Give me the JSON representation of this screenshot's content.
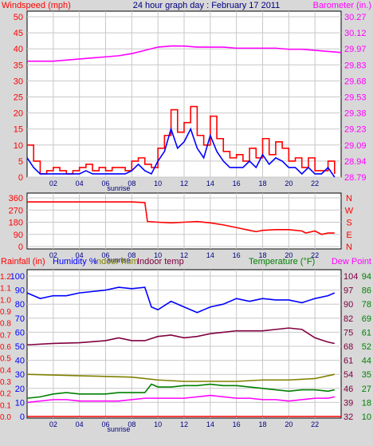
{
  "chart_data": [
    {
      "type": "line",
      "title": "24 hour graph day : February 17 2011",
      "ylabel_left": "Windspeed (mph)",
      "ylabel_right": "Barometer (in.)",
      "sunrise_label": "sunrise",
      "x_ticks": [
        "02",
        "04",
        "06",
        "08",
        "10",
        "12",
        "14",
        "16",
        "18",
        "20",
        "22"
      ],
      "ylim": [
        0,
        50
      ],
      "y_ticks": [
        "0",
        "5",
        "10",
        "15",
        "20",
        "25",
        "30",
        "35",
        "40",
        "45",
        "50"
      ],
      "y2lim": [
        28.79,
        30.27
      ],
      "y2_ticks": [
        "28.79",
        "28.94",
        "29.09",
        "29.23",
        "29.38",
        "29.53",
        "29.68",
        "29.83",
        "29.97",
        "30.12",
        "30.27"
      ],
      "series": [
        {
          "name": "Windspeed",
          "axis": "left",
          "color": "#ff0000",
          "step": true,
          "x": [
            0,
            0.5,
            1,
            1.5,
            2,
            2.5,
            3,
            3.5,
            4,
            4.5,
            5,
            5.5,
            6,
            6.5,
            7,
            7.5,
            8,
            8.5,
            9,
            9.5,
            10,
            10.5,
            11,
            11.5,
            12,
            12.5,
            13,
            13.5,
            14,
            14.5,
            15,
            15.5,
            16,
            16.5,
            17,
            17.5,
            18,
            18.5,
            19,
            19.5,
            20,
            20.5,
            21,
            21.5,
            22,
            22.5,
            23,
            23.5
          ],
          "y": [
            10,
            5,
            1,
            2,
            3,
            2,
            1,
            2,
            3,
            4,
            2,
            3,
            2,
            3,
            3,
            2,
            5,
            6,
            4,
            3,
            9,
            13,
            21,
            14,
            17,
            22,
            13,
            10,
            19,
            12,
            8,
            6,
            7,
            5,
            9,
            6,
            12,
            7,
            11,
            9,
            5,
            6,
            3,
            6,
            2,
            2,
            5,
            1
          ]
        },
        {
          "name": "Gust",
          "axis": "left",
          "color": "#0000ff",
          "x": [
            0,
            0.5,
            1,
            1.5,
            2,
            2.5,
            3,
            3.5,
            4,
            4.5,
            5,
            5.5,
            6,
            6.5,
            7,
            7.5,
            8,
            8.5,
            9,
            9.5,
            10,
            10.5,
            11,
            11.5,
            12,
            12.5,
            13,
            13.5,
            14,
            14.5,
            15,
            15.5,
            16,
            16.5,
            17,
            17.5,
            18,
            18.5,
            19,
            19.5,
            20,
            20.5,
            21,
            21.5,
            22,
            22.5,
            23,
            23.5
          ],
          "y": [
            6,
            3,
            1,
            1,
            1,
            1,
            1,
            1,
            1,
            2,
            1,
            1,
            1,
            1,
            1,
            1,
            2,
            4,
            2,
            1,
            5,
            8,
            15,
            9,
            11,
            15,
            9,
            6,
            13,
            8,
            5,
            3,
            3,
            3,
            5,
            3,
            7,
            4,
            6,
            5,
            3,
            3,
            1,
            3,
            1,
            1,
            3,
            0
          ]
        },
        {
          "name": "Barometer",
          "axis": "right",
          "color": "#ff00ff",
          "x": [
            0,
            1,
            2,
            3,
            4,
            5,
            6,
            7,
            8,
            9,
            10,
            11,
            12,
            13,
            14,
            15,
            16,
            17,
            18,
            19,
            20,
            21,
            22,
            23,
            24
          ],
          "y": [
            29.86,
            29.86,
            29.86,
            29.87,
            29.88,
            29.89,
            29.9,
            29.91,
            29.93,
            29.96,
            29.99,
            30.0,
            30.0,
            29.99,
            29.99,
            29.99,
            29.98,
            29.98,
            29.98,
            29.98,
            29.97,
            29.97,
            29.96,
            29.95,
            29.94
          ]
        }
      ]
    },
    {
      "type": "line",
      "x_ticks": [
        "02",
        "04",
        "06",
        "08",
        "10",
        "12",
        "14",
        "16",
        "18",
        "20",
        "22"
      ],
      "sunrise_label": "sunrise",
      "ylim": [
        0,
        360
      ],
      "y_ticks": [
        "0",
        "90",
        "180",
        "270",
        "360"
      ],
      "y2_ticks": [
        "N",
        "W",
        "S",
        "E",
        "N"
      ],
      "series": [
        {
          "name": "Wind direction",
          "color": "#ff0000",
          "x": [
            0,
            1,
            2,
            3,
            4,
            5,
            6,
            7,
            8,
            9,
            9.2,
            10,
            11,
            12,
            13,
            14,
            15,
            16,
            17,
            17.5,
            18,
            19,
            20,
            21,
            21.3,
            22,
            22.5,
            23,
            23.5
          ],
          "y": [
            330,
            330,
            330,
            330,
            330,
            330,
            330,
            330,
            330,
            325,
            185,
            180,
            175,
            180,
            185,
            175,
            160,
            140,
            120,
            110,
            120,
            125,
            125,
            115,
            100,
            115,
            90,
            100,
            100
          ]
        }
      ]
    },
    {
      "type": "line",
      "legend": [
        "Rainfall (in)",
        "Humidity %",
        "Indoor hum",
        "Indoor temp",
        "Temperature (°F)",
        "Dew Point"
      ],
      "x_ticks": [
        "02",
        "04",
        "06",
        "08",
        "10",
        "12",
        "14",
        "16",
        "18",
        "20",
        "22"
      ],
      "sunrise_label": "sunrise",
      "y_ticks_outer": [
        "0.0",
        "0.1",
        "0.2",
        "0.3",
        "0.4",
        "0.5",
        "0.6",
        "0.7",
        "0.8",
        "0.9",
        "1.0",
        "1.1",
        "1.2"
      ],
      "y_ticks_inner": [
        "0",
        "10",
        "20",
        "30",
        "40",
        "50",
        "60",
        "70",
        "80",
        "90",
        "100"
      ],
      "y_ticks_right_inner": [
        "32",
        "39",
        "46",
        "54",
        "61",
        "68",
        "75",
        "82",
        "90",
        "97",
        "104"
      ],
      "y_ticks_right_outer": [
        "10",
        "18",
        "27",
        "35",
        "44",
        "52",
        "61",
        "69",
        "78",
        "86",
        "94"
      ],
      "ylim": [
        0,
        100
      ],
      "series": [
        {
          "name": "Humidity",
          "color": "#0000ff",
          "x": [
            0,
            1,
            2,
            3,
            4,
            5,
            6,
            7,
            8,
            9,
            9.5,
            10,
            11,
            12,
            13,
            14,
            15,
            16,
            17,
            18,
            19,
            20,
            21,
            22,
            23,
            23.5
          ],
          "y": [
            88,
            84,
            86,
            86,
            88,
            89,
            90,
            92,
            91,
            92,
            78,
            76,
            82,
            78,
            74,
            78,
            80,
            84,
            82,
            84,
            83,
            83,
            81,
            84,
            86,
            88
          ]
        },
        {
          "name": "Indoor hum",
          "color": "#808000",
          "x": [
            0,
            2,
            4,
            6,
            8,
            9,
            10,
            12,
            14,
            16,
            18,
            20,
            22,
            23,
            23.5
          ],
          "y": [
            30,
            29.5,
            29,
            28.5,
            28,
            27,
            26,
            25,
            25,
            25,
            26,
            26,
            27,
            29,
            30
          ]
        },
        {
          "name": "Indoor temp",
          "color": "#800040",
          "x": [
            0,
            2,
            4,
            6,
            7,
            8,
            9,
            10,
            11,
            12,
            13,
            14,
            15,
            16,
            17,
            18,
            19,
            20,
            21,
            22,
            23,
            23.5
          ],
          "y": [
            51,
            52,
            52.5,
            54,
            56,
            54,
            54,
            57,
            58,
            56,
            57,
            59,
            60,
            61,
            61,
            61,
            62,
            63,
            62,
            56,
            53,
            52
          ]
        },
        {
          "name": "Temperature",
          "color": "#008000",
          "x": [
            0,
            1,
            2,
            3,
            4,
            5,
            6,
            7,
            8,
            9,
            9.5,
            10,
            11,
            12,
            13,
            14,
            15,
            16,
            17,
            18,
            19,
            20,
            21,
            22,
            23,
            23.5
          ],
          "y": [
            13,
            14,
            16,
            17,
            16,
            16,
            16,
            17,
            17,
            17,
            23,
            21,
            21,
            22,
            22,
            23,
            22,
            22,
            21,
            20,
            19,
            18,
            19,
            19,
            18,
            19
          ]
        },
        {
          "name": "Dew Point",
          "color": "#ff00ff",
          "x": [
            0,
            1,
            2,
            3,
            4,
            5,
            6,
            7,
            8,
            9,
            9.5,
            10,
            11,
            12,
            13,
            14,
            15,
            16,
            17,
            18,
            19,
            20,
            21,
            22,
            23,
            23.5
          ],
          "y": [
            10,
            11,
            12,
            12,
            11,
            11,
            11,
            11,
            12,
            13,
            13,
            13,
            13,
            13,
            14,
            15,
            14,
            13,
            13,
            12,
            12,
            11,
            12,
            13,
            13,
            14
          ]
        },
        {
          "name": "Rainfall",
          "color": "#ff0000",
          "x": [
            0,
            24
          ],
          "y": [
            0,
            0
          ]
        }
      ]
    }
  ]
}
